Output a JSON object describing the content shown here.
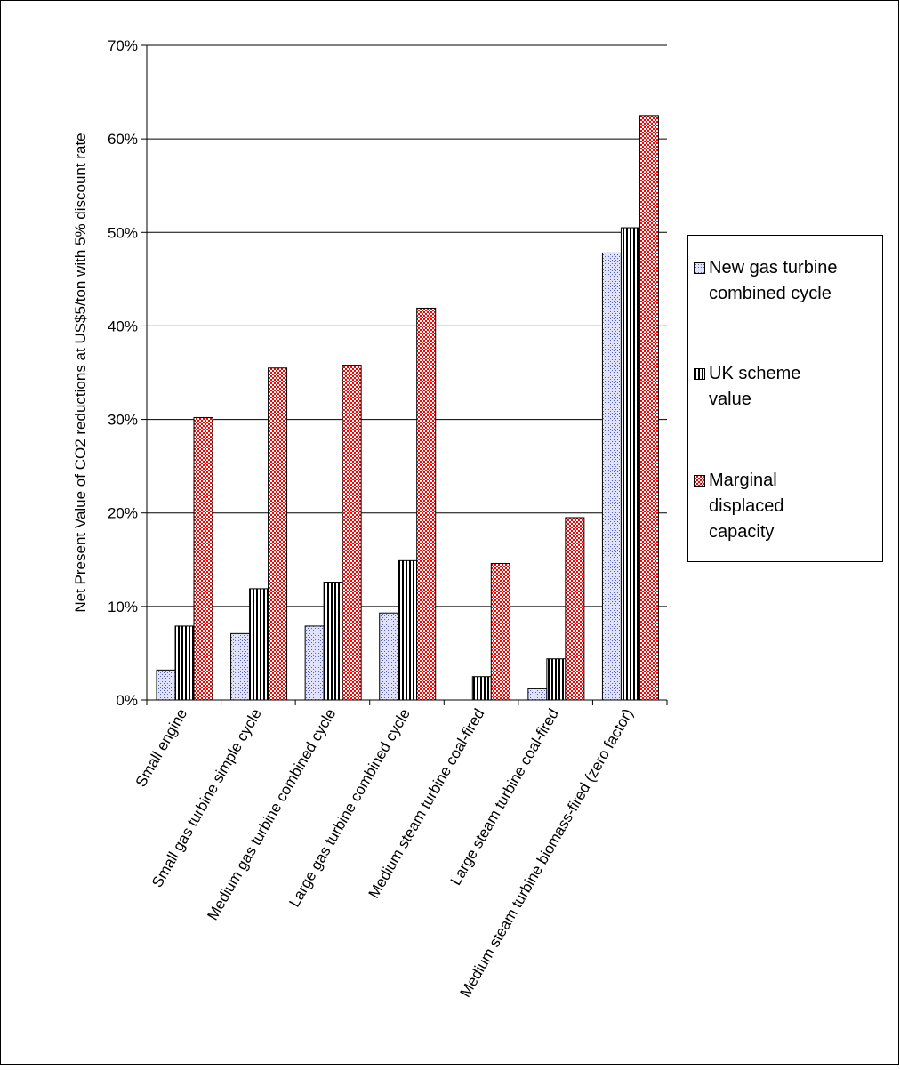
{
  "chart_data": {
    "type": "bar",
    "ylabel": "Net Present Value of CO2 reductions at US$5/ton with 5% discount rate",
    "ylim": [
      0,
      70
    ],
    "yticks": [
      "0%",
      "10%",
      "20%",
      "30%",
      "40%",
      "50%",
      "60%",
      "70%"
    ],
    "grid": true,
    "legend_position": "right",
    "categories": [
      "Small engine",
      "Small gas turbine simple cycle",
      "Medium gas turbine combined cycle",
      "Large gas turbine combined cycle",
      "Medium steam turbine coal-fired",
      "Large steam turbine coal-fired",
      "Medium steam turbine biomass-fired (zero factor)"
    ],
    "series": [
      {
        "name": "New gas turbine combined cycle",
        "values": [
          3.2,
          7.1,
          7.9,
          9.3,
          0.0,
          1.2,
          47.8
        ],
        "color": "#c8cdf0",
        "pattern": "dots"
      },
      {
        "name": "UK scheme value",
        "values": [
          7.9,
          11.9,
          12.6,
          14.9,
          2.5,
          4.4,
          50.5
        ],
        "color": "#ffffff",
        "pattern": "vertical-stripes"
      },
      {
        "name": "Marginal displaced capacity",
        "values": [
          30.2,
          35.5,
          35.8,
          41.9,
          14.6,
          19.5,
          62.5
        ],
        "color": "#ff0000",
        "pattern": "checker"
      }
    ]
  }
}
